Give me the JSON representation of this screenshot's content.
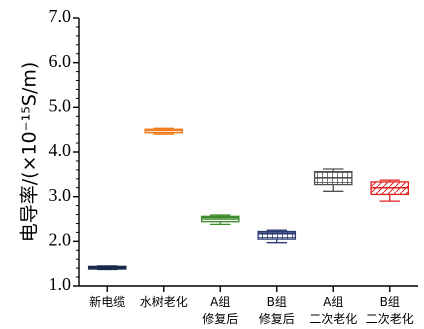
{
  "chart_data": {
    "type": "box",
    "title": "",
    "xlabel": "",
    "ylabel": "电导率/(×10⁻¹⁵S/m)",
    "ylim": [
      1.0,
      7.0
    ],
    "yticks": [
      "1.0",
      "2.0",
      "3.0",
      "4.0",
      "5.0",
      "6.0",
      "7.0"
    ],
    "grid": false,
    "categories": [
      {
        "line1": "新电缆",
        "line2": ""
      },
      {
        "line1": "水树老化",
        "line2": ""
      },
      {
        "line1": "A组",
        "line2": "修复后"
      },
      {
        "line1": "B组",
        "line2": "修复后"
      },
      {
        "line1": "A组",
        "line2": "二次老化"
      },
      {
        "line1": "B组",
        "line2": "二次老化"
      }
    ],
    "series": [
      {
        "min": 1.37,
        "q1": 1.38,
        "median": 1.41,
        "q3": 1.44,
        "max": 1.45,
        "color": "#1a2a4a",
        "pattern": "solid"
      },
      {
        "min": 4.4,
        "q1": 4.43,
        "median": 4.48,
        "q3": 4.51,
        "max": 4.53,
        "color": "#f07a1c",
        "pattern": "hstripe"
      },
      {
        "min": 2.38,
        "q1": 2.44,
        "median": 2.5,
        "q3": 2.56,
        "max": 2.59,
        "color": "#3a8a28",
        "pattern": "hstripe"
      },
      {
        "min": 1.97,
        "q1": 2.05,
        "median": 2.17,
        "q3": 2.22,
        "max": 2.25,
        "color": "#2a3a70",
        "pattern": "grid"
      },
      {
        "min": 3.12,
        "q1": 3.27,
        "median": 3.42,
        "q3": 3.56,
        "max": 3.62,
        "color": "#505050",
        "pattern": "grid"
      },
      {
        "min": 2.9,
        "q1": 3.05,
        "median": 3.2,
        "q3": 3.33,
        "max": 3.37,
        "color": "#e02020",
        "pattern": "diag"
      }
    ]
  }
}
